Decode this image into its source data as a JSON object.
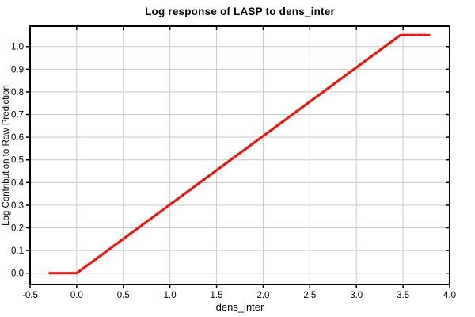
{
  "chart_data": {
    "type": "line",
    "title": "Log response of LASP to dens_inter",
    "xlabel": "dens_inter",
    "ylabel": "Log Contribution to Raw Prediction",
    "xlim": [
      -0.5,
      4.0
    ],
    "ylim": [
      -0.05,
      1.09
    ],
    "grid": true,
    "legend": "none",
    "x_ticks": [
      -0.5,
      0.0,
      0.5,
      1.0,
      1.5,
      2.0,
      2.5,
      3.0,
      3.5,
      4.0
    ],
    "x_tick_labels": [
      "-0.5",
      "0.0",
      "0.5",
      "1.0",
      "1.5",
      "2.0",
      "2.5",
      "3.0",
      "3.5",
      "4.0"
    ],
    "y_ticks": [
      0.0,
      0.1,
      0.2,
      0.3,
      0.4,
      0.5,
      0.6,
      0.7,
      0.8,
      0.9,
      1.0
    ],
    "y_tick_labels": [
      "0.0",
      "0.1",
      "0.2",
      "0.3",
      "0.4",
      "0.5",
      "0.6",
      "0.7",
      "0.8",
      "0.9",
      "1.0"
    ],
    "series": [
      {
        "name": "LASP log response curve",
        "style": "dense-dotted",
        "color": "#fb211b",
        "points": [
          [
            -0.3,
            0.0
          ],
          [
            0.0,
            0.0
          ],
          [
            3.47,
            1.05
          ],
          [
            3.79,
            1.05
          ]
        ],
        "description": "Flat at 0.0 from x=-0.30 to x=0.0; linear rise (slope ~0.30/unit, passes through (2.0, 0.6)); plateau at ~1.05 from x~3.47 to x~3.79"
      }
    ],
    "colors": {
      "line": "#fb211b",
      "line_dark": "#c70500",
      "grid": "#c9c9c9",
      "frame": "#000000",
      "background": "#ffffff",
      "text": "#000000"
    }
  }
}
